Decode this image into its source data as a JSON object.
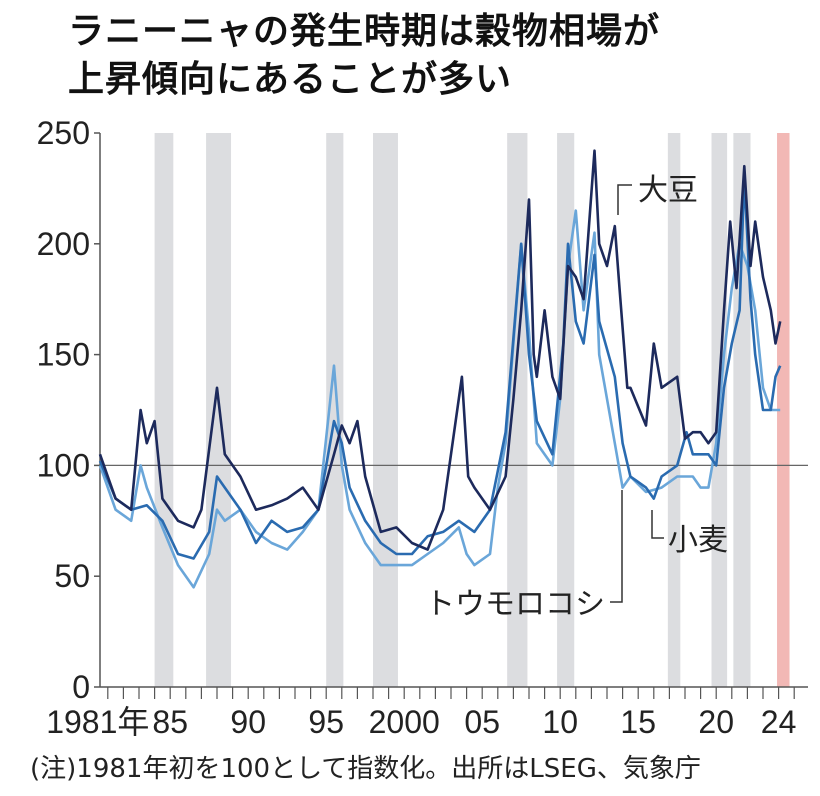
{
  "title_lines": [
    "ラニーニャの発生時期は穀物相場が",
    "上昇傾向にあることが多い"
  ],
  "note": "(注)1981年初を100として指数化。出所はLSEG、気象庁",
  "chart_data": {
    "type": "line",
    "ylim": [
      0,
      250
    ],
    "xlim": [
      1981,
      2025.5
    ],
    "yticks": [
      0,
      50,
      100,
      150,
      200,
      250
    ],
    "xtick_labels": [
      {
        "year": 1981,
        "label": "1981年"
      },
      {
        "year": 1985,
        "label": "85"
      },
      {
        "year": 1990,
        "label": "90"
      },
      {
        "year": 1995,
        "label": "95"
      },
      {
        "year": 2000,
        "label": "2000"
      },
      {
        "year": 2005,
        "label": "05"
      },
      {
        "year": 2010,
        "label": "10"
      },
      {
        "year": 2015,
        "label": "15"
      },
      {
        "year": 2020,
        "label": "20"
      },
      {
        "year": 2024,
        "label": "24"
      }
    ],
    "reference_line": 100,
    "grid": false,
    "shaded_periods": [
      [
        1984.5,
        1985.7
      ],
      [
        1987.8,
        1989.4
      ],
      [
        1995.5,
        1996.6
      ],
      [
        1998.5,
        2000.1
      ],
      [
        2007.1,
        2008.4
      ],
      [
        2010.3,
        2011.4
      ],
      [
        2017.4,
        2018.2
      ],
      [
        2020.2,
        2021.2
      ],
      [
        2021.6,
        2022.7
      ]
    ],
    "highlight_period": [
      2024.4,
      2025.2
    ],
    "colors": {
      "shade": "#dcdde0",
      "highlight": "#f2b8b5",
      "soybean": "#1d2a5c",
      "wheat": "#2a6bb0",
      "corn": "#6aa6d9",
      "axis": "#555555"
    },
    "series": [
      {
        "name": "大豆",
        "key": "soybean",
        "points": [
          [
            1981,
            105
          ],
          [
            1981.5,
            95
          ],
          [
            1982,
            85
          ],
          [
            1983,
            80
          ],
          [
            1983.6,
            125
          ],
          [
            1984,
            110
          ],
          [
            1984.5,
            120
          ],
          [
            1985,
            85
          ],
          [
            1986,
            75
          ],
          [
            1987,
            72
          ],
          [
            1987.5,
            80
          ],
          [
            1988.5,
            135
          ],
          [
            1989,
            105
          ],
          [
            1990,
            95
          ],
          [
            1991,
            80
          ],
          [
            1992,
            82
          ],
          [
            1993,
            85
          ],
          [
            1994,
            90
          ],
          [
            1995,
            80
          ],
          [
            1996,
            105
          ],
          [
            1996.5,
            118
          ],
          [
            1997,
            110
          ],
          [
            1997.5,
            120
          ],
          [
            1998,
            95
          ],
          [
            1999,
            70
          ],
          [
            2000,
            72
          ],
          [
            2001,
            65
          ],
          [
            2002,
            62
          ],
          [
            2003,
            80
          ],
          [
            2004.2,
            140
          ],
          [
            2004.6,
            95
          ],
          [
            2005,
            90
          ],
          [
            2006,
            80
          ],
          [
            2007,
            95
          ],
          [
            2007.5,
            130
          ],
          [
            2008,
            170
          ],
          [
            2008.5,
            220
          ],
          [
            2008.8,
            150
          ],
          [
            2009,
            140
          ],
          [
            2009.5,
            170
          ],
          [
            2010,
            140
          ],
          [
            2010.5,
            130
          ],
          [
            2011,
            190
          ],
          [
            2011.5,
            185
          ],
          [
            2012,
            175
          ],
          [
            2012.7,
            242
          ],
          [
            2013,
            200
          ],
          [
            2013.5,
            190
          ],
          [
            2014,
            208
          ],
          [
            2014.3,
            180
          ],
          [
            2014.8,
            135
          ],
          [
            2015,
            135
          ],
          [
            2016,
            118
          ],
          [
            2016.5,
            155
          ],
          [
            2017,
            135
          ],
          [
            2018,
            140
          ],
          [
            2018.5,
            112
          ],
          [
            2019,
            115
          ],
          [
            2019.5,
            115
          ],
          [
            2020,
            110
          ],
          [
            2020.5,
            115
          ],
          [
            2021,
            170
          ],
          [
            2021.4,
            210
          ],
          [
            2021.8,
            180
          ],
          [
            2022.3,
            235
          ],
          [
            2022.7,
            190
          ],
          [
            2023,
            210
          ],
          [
            2023.5,
            185
          ],
          [
            2024,
            170
          ],
          [
            2024.3,
            155
          ],
          [
            2024.6,
            165
          ]
        ]
      },
      {
        "name": "小麦",
        "key": "wheat",
        "points": [
          [
            1981,
            102
          ],
          [
            1982,
            85
          ],
          [
            1983,
            80
          ],
          [
            1984,
            82
          ],
          [
            1985,
            75
          ],
          [
            1986,
            60
          ],
          [
            1987,
            58
          ],
          [
            1988,
            70
          ],
          [
            1988.5,
            95
          ],
          [
            1989,
            90
          ],
          [
            1990,
            80
          ],
          [
            1991,
            65
          ],
          [
            1992,
            75
          ],
          [
            1993,
            70
          ],
          [
            1994,
            72
          ],
          [
            1995,
            80
          ],
          [
            1996,
            120
          ],
          [
            1996.5,
            110
          ],
          [
            1997,
            90
          ],
          [
            1998,
            75
          ],
          [
            1999,
            65
          ],
          [
            2000,
            60
          ],
          [
            2001,
            60
          ],
          [
            2002,
            68
          ],
          [
            2003,
            70
          ],
          [
            2004,
            75
          ],
          [
            2005,
            70
          ],
          [
            2006,
            80
          ],
          [
            2007,
            115
          ],
          [
            2008,
            200
          ],
          [
            2008.5,
            150
          ],
          [
            2009,
            120
          ],
          [
            2010,
            105
          ],
          [
            2010.7,
            155
          ],
          [
            2011,
            200
          ],
          [
            2011.5,
            165
          ],
          [
            2012,
            155
          ],
          [
            2012.7,
            195
          ],
          [
            2013,
            165
          ],
          [
            2014,
            140
          ],
          [
            2014.5,
            110
          ],
          [
            2015,
            95
          ],
          [
            2016,
            90
          ],
          [
            2016.5,
            85
          ],
          [
            2017,
            95
          ],
          [
            2018,
            100
          ],
          [
            2018.6,
            115
          ],
          [
            2019,
            105
          ],
          [
            2020,
            105
          ],
          [
            2020.5,
            100
          ],
          [
            2021,
            135
          ],
          [
            2021.5,
            155
          ],
          [
            2022,
            170
          ],
          [
            2022.3,
            230
          ],
          [
            2022.7,
            175
          ],
          [
            2023,
            150
          ],
          [
            2023.5,
            125
          ],
          [
            2024,
            125
          ],
          [
            2024.3,
            140
          ],
          [
            2024.6,
            145
          ]
        ]
      },
      {
        "name": "トウモロコシ",
        "key": "corn",
        "points": [
          [
            1981,
            100
          ],
          [
            1982,
            80
          ],
          [
            1983,
            75
          ],
          [
            1983.6,
            100
          ],
          [
            1984,
            90
          ],
          [
            1985,
            72
          ],
          [
            1986,
            55
          ],
          [
            1987,
            45
          ],
          [
            1988,
            60
          ],
          [
            1988.5,
            80
          ],
          [
            1989,
            75
          ],
          [
            1990,
            80
          ],
          [
            1991,
            70
          ],
          [
            1992,
            65
          ],
          [
            1993,
            62
          ],
          [
            1994,
            70
          ],
          [
            1995,
            80
          ],
          [
            1996,
            145
          ],
          [
            1996.5,
            100
          ],
          [
            1997,
            80
          ],
          [
            1998,
            65
          ],
          [
            1999,
            55
          ],
          [
            2000,
            55
          ],
          [
            2001,
            55
          ],
          [
            2002,
            60
          ],
          [
            2003,
            65
          ],
          [
            2004,
            72
          ],
          [
            2004.5,
            60
          ],
          [
            2005,
            55
          ],
          [
            2006,
            60
          ],
          [
            2006.5,
            90
          ],
          [
            2007,
            110
          ],
          [
            2008,
            200
          ],
          [
            2008.5,
            160
          ],
          [
            2009,
            110
          ],
          [
            2010,
            100
          ],
          [
            2010.5,
            130
          ],
          [
            2011,
            190
          ],
          [
            2011.5,
            215
          ],
          [
            2012,
            170
          ],
          [
            2012.7,
            205
          ],
          [
            2013,
            150
          ],
          [
            2014,
            110
          ],
          [
            2014.5,
            90
          ],
          [
            2015,
            95
          ],
          [
            2016,
            88
          ],
          [
            2017,
            90
          ],
          [
            2018,
            95
          ],
          [
            2019,
            95
          ],
          [
            2019.5,
            90
          ],
          [
            2020,
            90
          ],
          [
            2020.5,
            110
          ],
          [
            2021,
            150
          ],
          [
            2021.5,
            180
          ],
          [
            2022,
            200
          ],
          [
            2022.5,
            190
          ],
          [
            2023,
            170
          ],
          [
            2023.5,
            135
          ],
          [
            2024,
            125
          ],
          [
            2024.6,
            125
          ]
        ]
      }
    ]
  }
}
